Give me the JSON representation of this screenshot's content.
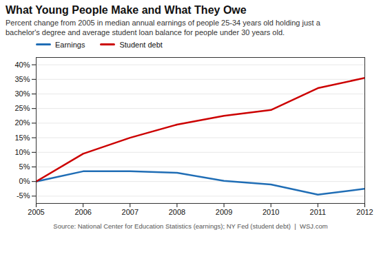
{
  "chart_data": {
    "type": "line",
    "title": "What Young People Make and What They Owe",
    "subtitle": "Percent change from 2005 in median annual earnings of people 25-34 years old holding just a\nbachelor's degree and average student loan balance for people under 30 years old.",
    "source": "Source: National Center for Education Statistics (earnings); NY Fed (student debt)  |  WSJ.com",
    "x": [
      2005,
      2006,
      2007,
      2008,
      2009,
      2010,
      2011,
      2012
    ],
    "series": [
      {
        "name": "Earnings",
        "color": "#1F6DB5",
        "values": [
          0,
          3.5,
          3.5,
          3.0,
          0.2,
          -1.0,
          -4.5,
          -2.5
        ]
      },
      {
        "name": "Student debt",
        "color": "#CC0000",
        "values": [
          0,
          9.5,
          15.0,
          19.5,
          22.5,
          24.5,
          32.0,
          35.5
        ]
      }
    ],
    "xlim": [
      2005,
      2012
    ],
    "xticks": [
      2005,
      2006,
      2007,
      2008,
      2009,
      2010,
      2011,
      2012
    ],
    "ylim": [
      -7.5,
      42.5
    ],
    "yticks": [
      {
        "value": -5,
        "label": "-5%"
      },
      {
        "value": 0,
        "label": "0%"
      },
      {
        "value": 5,
        "label": "5%"
      },
      {
        "value": 10,
        "label": "10%"
      },
      {
        "value": 15,
        "label": "15%"
      },
      {
        "value": 20,
        "label": "20%"
      },
      {
        "value": 25,
        "label": "25%"
      },
      {
        "value": 30,
        "label": "30%"
      },
      {
        "value": 35,
        "label": "35%"
      },
      {
        "value": 40,
        "label": "40%"
      }
    ],
    "grid": true,
    "legend": "upper left"
  }
}
